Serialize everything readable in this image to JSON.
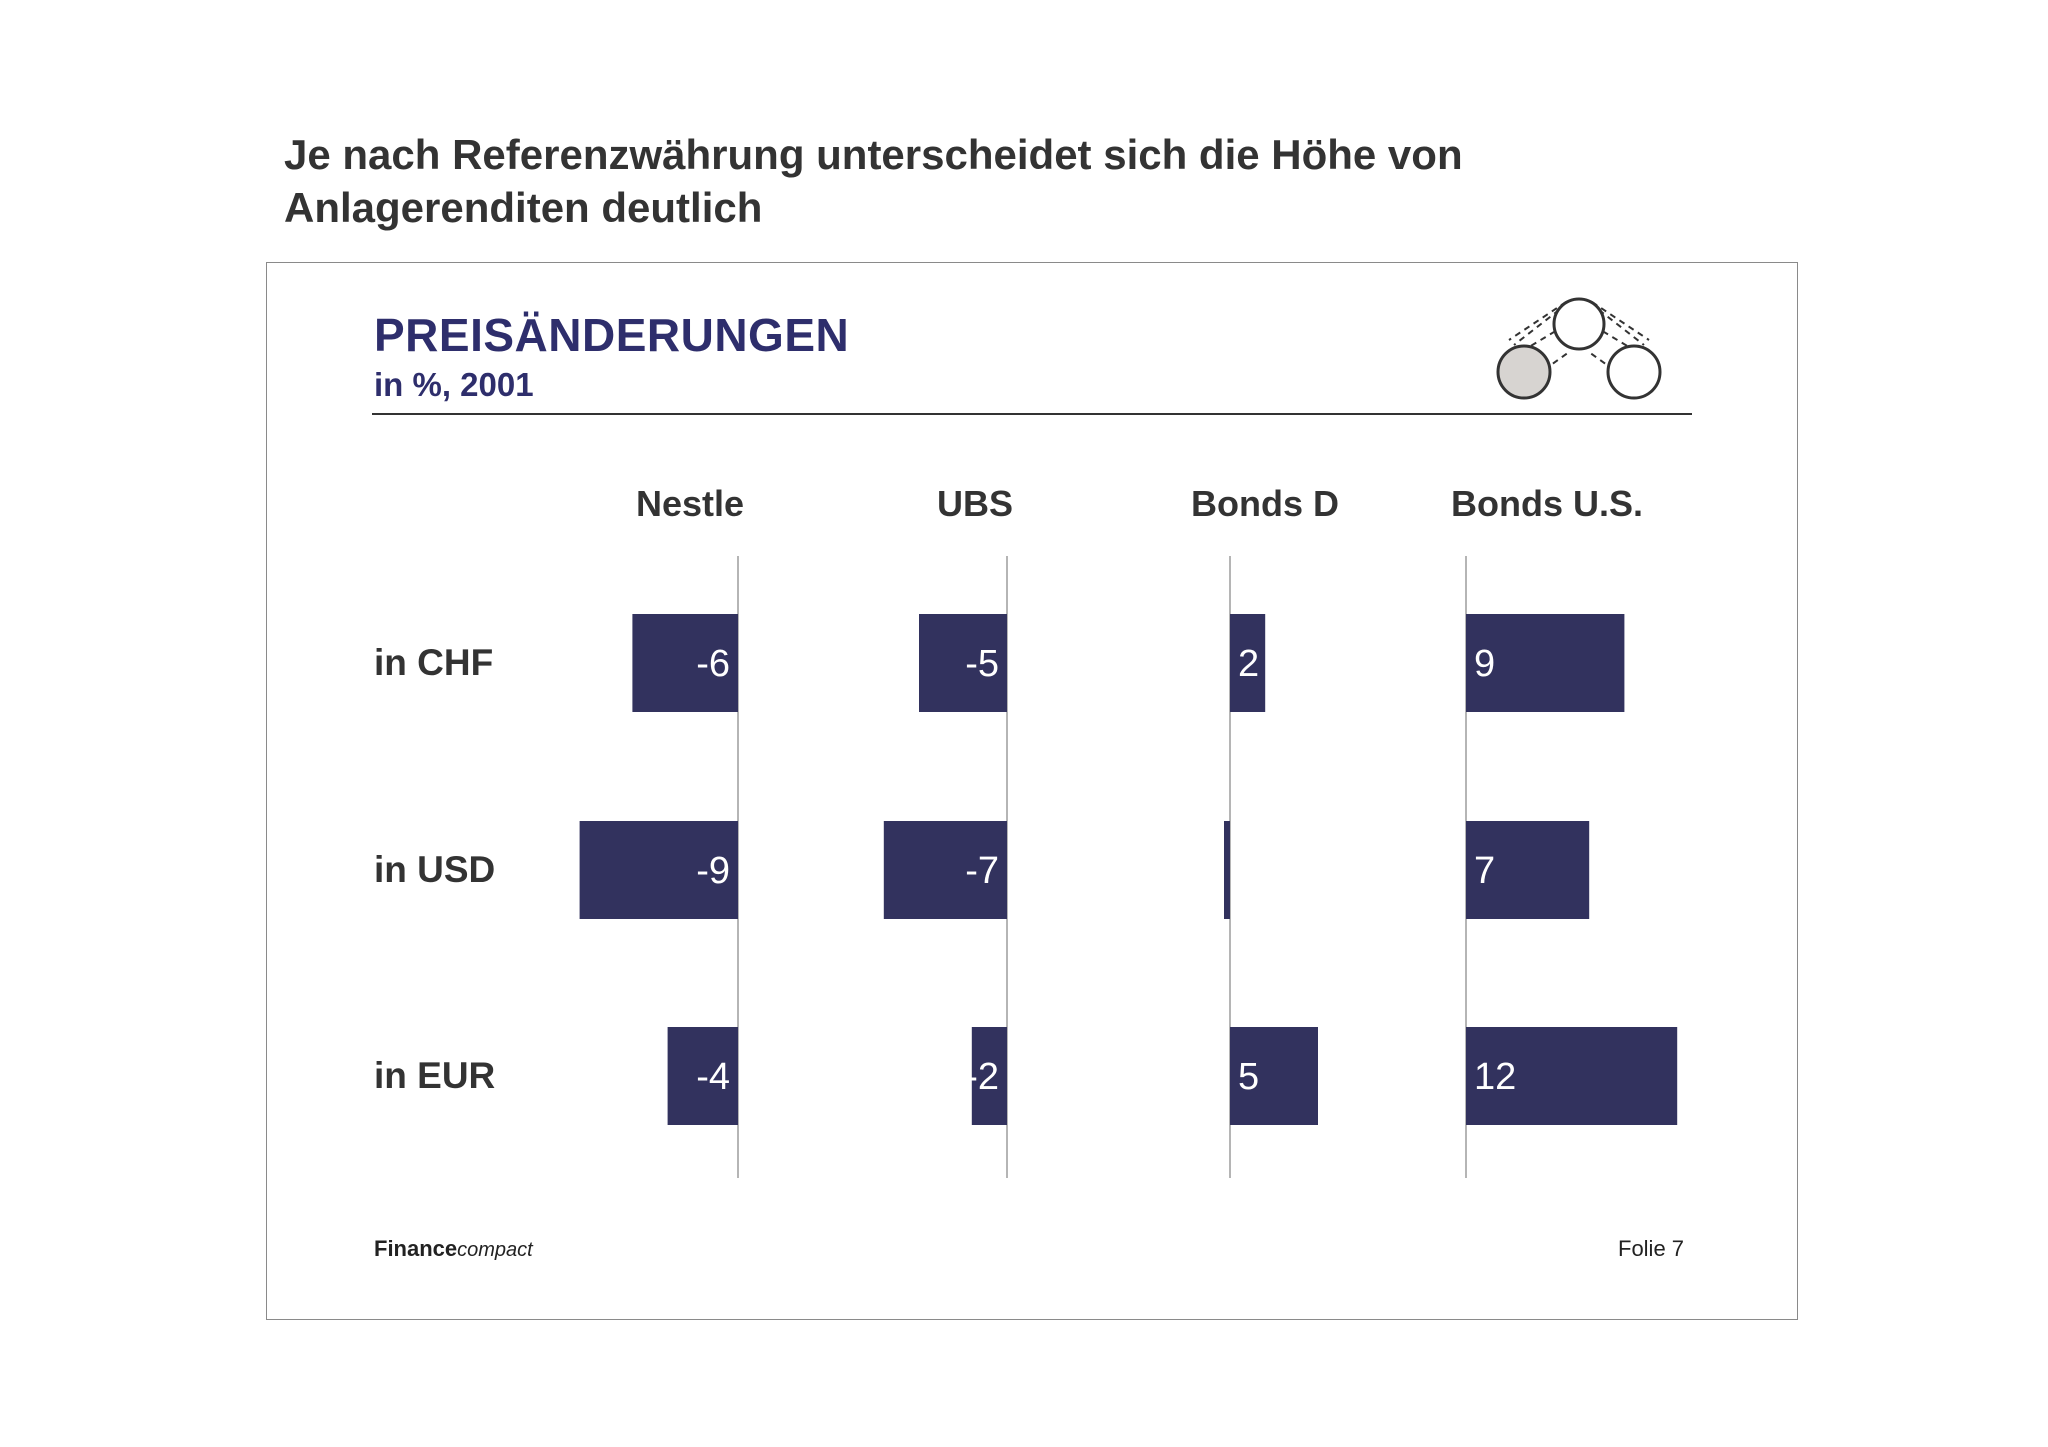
{
  "headline": "Je nach Referenzwährung unterscheidet sich die Höhe von Anlagerenditen deutlich",
  "chart_data": {
    "type": "bar",
    "orientation": "horizontal",
    "title": "PREISÄNDERUNGEN",
    "subtitle": "in %, 2001",
    "columns": [
      "Nestle",
      "UBS",
      "Bonds D",
      "Bonds U.S."
    ],
    "rows": [
      "in CHF",
      "in USD",
      "in EUR"
    ],
    "values": [
      [
        -6,
        -5,
        2,
        9
      ],
      [
        -9,
        -7,
        0,
        7
      ],
      [
        -4,
        -2,
        5,
        12
      ]
    ],
    "value_labels": [
      [
        "-6",
        "-5",
        "2",
        "9"
      ],
      [
        "-9",
        "-7",
        "",
        "7"
      ],
      [
        "-4",
        "-2",
        "5",
        "12"
      ]
    ],
    "bar_color": "#32325e",
    "axis_color": "#b5b5b5"
  },
  "footer": {
    "brand_bold": "Finance",
    "brand_italic": "compact",
    "page": "Folie 7"
  },
  "logo": {
    "icon": "three-circles-network-icon"
  }
}
